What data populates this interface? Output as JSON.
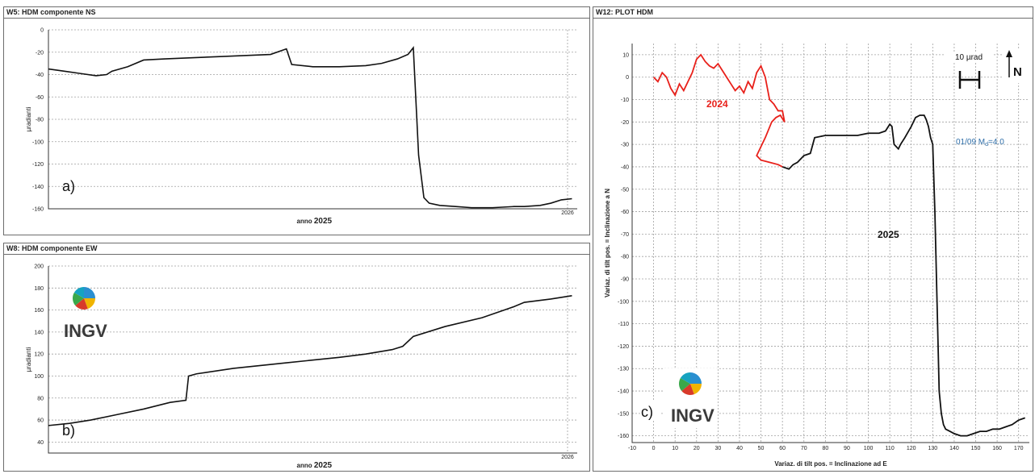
{
  "panels": {
    "ns_title": "W5: HDM componente NS",
    "ew_title": "W8: HDM componente EW",
    "plot_title": "W12: PLOT HDM"
  },
  "logo": {
    "text": "INGV"
  },
  "chart_data": [
    {
      "type": "line",
      "panel_label": "a)",
      "xlabel_prefix": "anno",
      "xlabel_year": "2025",
      "ylabel": "µradianti",
      "x_end_label": "2026",
      "ylim": [
        -160,
        0
      ],
      "yticks": [
        0,
        -20,
        -40,
        -60,
        -80,
        -100,
        -120,
        -140,
        -160
      ],
      "x": [
        0,
        0.03,
        0.06,
        0.09,
        0.11,
        0.12,
        0.15,
        0.18,
        0.22,
        0.27,
        0.32,
        0.37,
        0.42,
        0.45,
        0.46,
        0.5,
        0.55,
        0.6,
        0.63,
        0.66,
        0.68,
        0.69,
        0.7,
        0.71,
        0.72,
        0.74,
        0.77,
        0.8,
        0.84,
        0.88,
        0.9,
        0.93,
        0.95,
        0.97,
        0.99
      ],
      "y": [
        -35,
        -37,
        -39,
        -41,
        -40,
        -37,
        -33,
        -27,
        -26,
        -25,
        -24,
        -23,
        -22,
        -17,
        -31,
        -33,
        -33,
        -32,
        -30,
        -26,
        -22,
        -16,
        -112,
        -150,
        -155,
        -157,
        -158,
        -159,
        -159,
        -158,
        -158,
        -157,
        -155,
        -152,
        -151
      ]
    },
    {
      "type": "line",
      "panel_label": "b)",
      "xlabel_prefix": "anno",
      "xlabel_year": "2025",
      "ylabel": "µradianti",
      "x_end_label": "2026",
      "ylim": [
        30,
        200
      ],
      "yticks": [
        200,
        180,
        160,
        140,
        120,
        100,
        80,
        60,
        40
      ],
      "x": [
        0,
        0.04,
        0.08,
        0.13,
        0.18,
        0.23,
        0.26,
        0.265,
        0.28,
        0.35,
        0.45,
        0.55,
        0.6,
        0.65,
        0.67,
        0.69,
        0.75,
        0.82,
        0.88,
        0.9,
        0.95,
        0.99
      ],
      "y": [
        55,
        57,
        60,
        65,
        70,
        76,
        78,
        100,
        102,
        107,
        112,
        117,
        120,
        124,
        127,
        136,
        145,
        153,
        163,
        167,
        170,
        173
      ]
    },
    {
      "type": "line",
      "panel_label": "c)",
      "xlabel": "Variaz. di tilt pos. = Inclinazione ad E",
      "ylabel": "Variaz. di tilt pos. = Inclinazione a N",
      "xlim": [
        -10,
        175
      ],
      "ylim": [
        -163,
        15
      ],
      "xticks": [
        -10,
        0,
        10,
        20,
        30,
        40,
        50,
        60,
        70,
        80,
        90,
        100,
        110,
        120,
        130,
        140,
        150,
        160,
        170
      ],
      "yticks": [
        10,
        0,
        -10,
        -20,
        -30,
        -40,
        -50,
        -60,
        -70,
        -80,
        -90,
        -100,
        -110,
        -120,
        -130,
        -140,
        -150,
        -160
      ],
      "scale_label": "10 µrad",
      "north_label": "N",
      "event_label": "01/09 M",
      "event_sub": "d",
      "event_value": "=4.0",
      "series": [
        {
          "name": "2024",
          "color": "#e8201a",
          "x": [
            0,
            2,
            4,
            6,
            8,
            10,
            12,
            14,
            16,
            18,
            20,
            22,
            24,
            26,
            28,
            30,
            32,
            34,
            36,
            38,
            40,
            42,
            44,
            46,
            48,
            50,
            52,
            54,
            56,
            58,
            60,
            61,
            59,
            57,
            55,
            52,
            50,
            48,
            50,
            54,
            58,
            60
          ],
          "y": [
            0,
            -2,
            2,
            0,
            -5,
            -8,
            -3,
            -6,
            -2,
            2,
            8,
            10,
            7,
            5,
            4,
            6,
            3,
            0,
            -3,
            -6,
            -4,
            -7,
            -2,
            -5,
            2,
            5,
            0,
            -10,
            -12,
            -15,
            -15,
            -20,
            -17,
            -18,
            -20,
            -27,
            -31,
            -35,
            -37,
            -38,
            -39,
            -40
          ]
        },
        {
          "name": "2025",
          "color": "#111111",
          "x": [
            60,
            63,
            65,
            67,
            70,
            73,
            75,
            80,
            85,
            90,
            95,
            100,
            105,
            108,
            110,
            111,
            112,
            113,
            114,
            115,
            117,
            120,
            122,
            124,
            126,
            127,
            128,
            129,
            130,
            131,
            132,
            133,
            134,
            135,
            136,
            138,
            140,
            143,
            146,
            149,
            152,
            155,
            158,
            161,
            164,
            167,
            170,
            173
          ],
          "y": [
            -40,
            -41,
            -39,
            -38,
            -35,
            -34,
            -27,
            -26,
            -26,
            -26,
            -26,
            -25,
            -25,
            -24,
            -21,
            -22,
            -30,
            -31,
            -32,
            -30,
            -27,
            -22,
            -18,
            -17,
            -17,
            -19,
            -22,
            -27,
            -30,
            -60,
            -100,
            -140,
            -150,
            -155,
            -157,
            -158,
            -159,
            -160,
            -160,
            -159,
            -158,
            -158,
            -157,
            -157,
            -156,
            -155,
            -153,
            -152
          ]
        }
      ]
    }
  ]
}
